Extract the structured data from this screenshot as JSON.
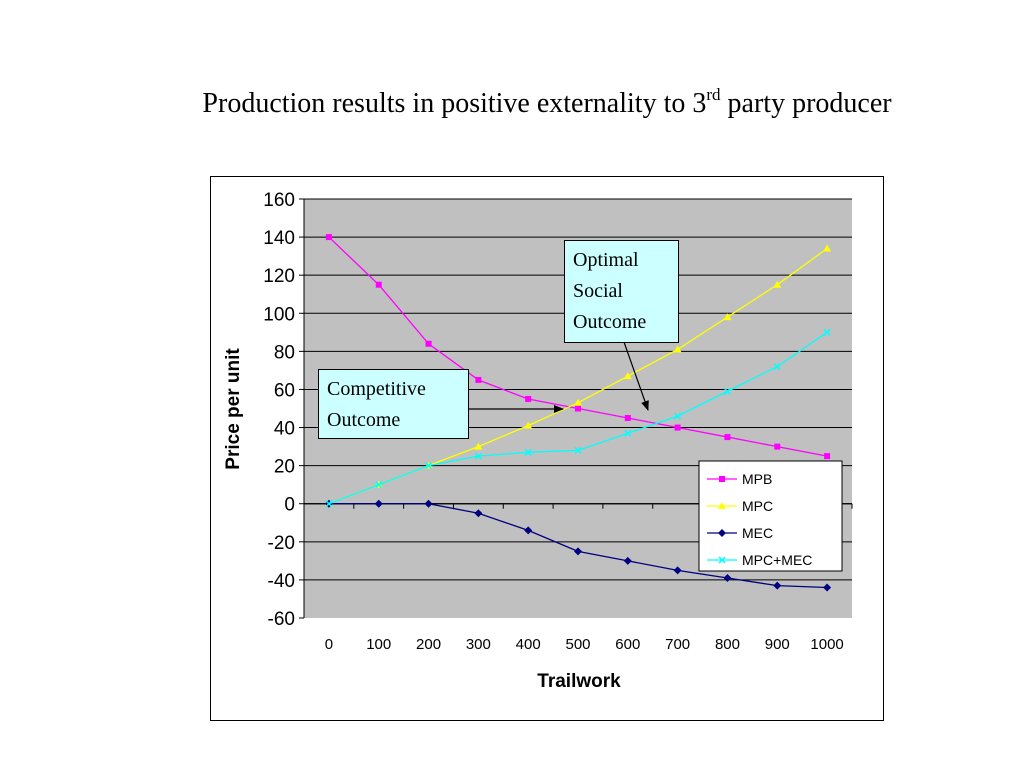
{
  "slide": {
    "title_main": "Production results in positive externality to 3",
    "title_sup": "rd",
    "title_tail": " party producer"
  },
  "callouts": {
    "optimal": [
      "Optimal",
      "Social",
      "Outcome"
    ],
    "competitive": [
      "Competitive",
      "Outcome"
    ]
  },
  "chart_data": {
    "type": "line",
    "title": "",
    "xlabel": "Trailwork",
    "ylabel": "Price per unit",
    "categories": [
      "0",
      "100",
      "200",
      "300",
      "400",
      "500",
      "600",
      "700",
      "800",
      "900",
      "1000"
    ],
    "ylim": [
      -60,
      160
    ],
    "yticks": [
      "160",
      "140",
      "120",
      "100",
      "80",
      "60",
      "40",
      "20",
      "0",
      "-20",
      "-40",
      "-60"
    ],
    "grid": true,
    "legend_position": "bottom-right",
    "plot_background": "#c0c0c0",
    "series": [
      {
        "name": "MPB",
        "color": "#ff00ff",
        "marker": "square",
        "values": [
          140,
          115,
          84,
          65,
          55,
          50,
          45,
          40,
          35,
          30,
          25
        ]
      },
      {
        "name": "MPC",
        "color": "#ffff00",
        "marker": "triangle",
        "values": [
          0,
          10,
          20,
          30,
          41,
          53,
          67,
          81,
          98,
          115,
          134
        ]
      },
      {
        "name": "MEC",
        "color": "#000080",
        "marker": "diamond",
        "values": [
          0,
          0,
          0,
          -5,
          -14,
          -25,
          -30,
          -35,
          -39,
          -43,
          -44
        ]
      },
      {
        "name": "MPC+MEC",
        "color": "#00ffff",
        "marker": "x",
        "values": [
          0,
          10,
          20,
          25,
          27,
          28,
          37,
          46,
          59,
          72,
          90
        ]
      }
    ]
  }
}
